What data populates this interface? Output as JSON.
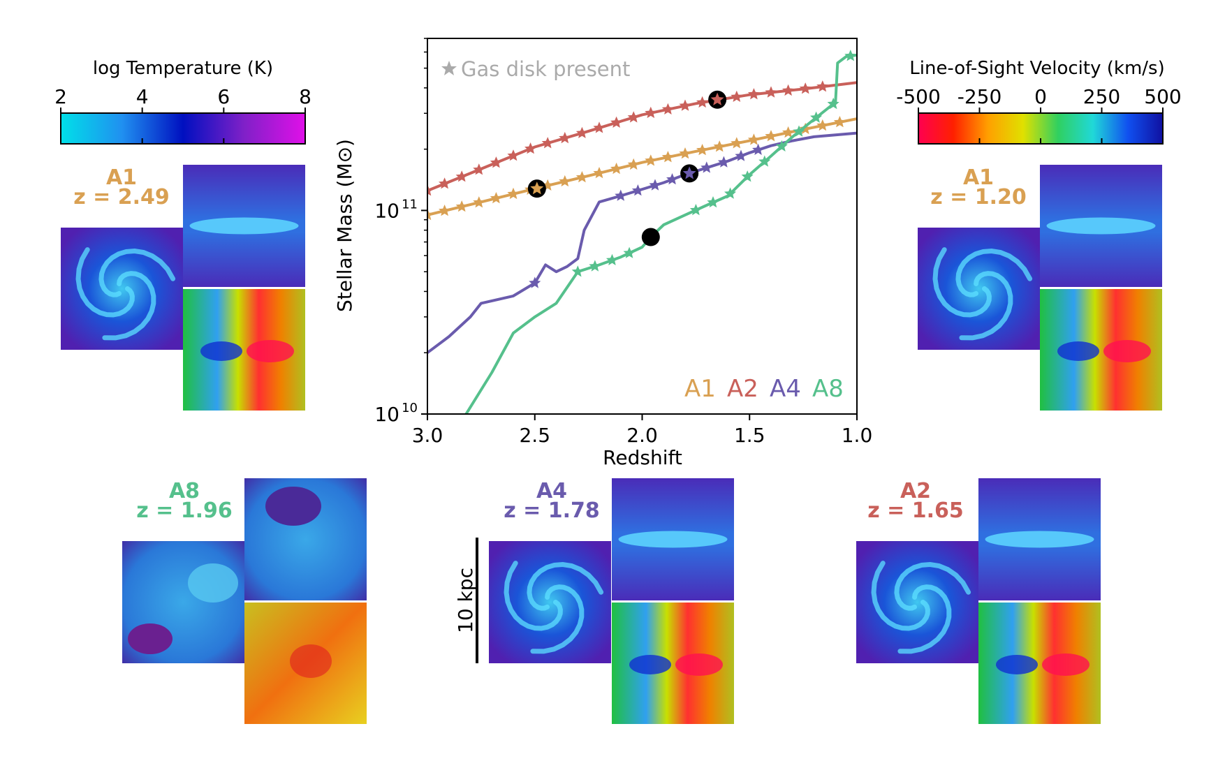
{
  "chart_data": {
    "type": "line",
    "title": "",
    "xlabel": "Redshift",
    "ylabel": "Stellar Mass (M⊙)",
    "xlim": [
      3.0,
      1.0
    ],
    "ylim": [
      10000000000.0,
      700000000000.0
    ],
    "yscale": "log",
    "xticks": [
      3.0,
      2.5,
      2.0,
      1.5,
      1.0
    ],
    "xtick_labels": [
      "3.0",
      "2.5",
      "2.0",
      "1.5",
      "1.0"
    ],
    "yticks": [
      {
        "value": 10000000000.0,
        "base": "10",
        "exp": "10"
      },
      {
        "value": 100000000000.0,
        "base": "10",
        "exp": "11"
      }
    ],
    "annotation": "Gas disk present",
    "legend_entries": [
      "A1",
      "A2",
      "A4",
      "A8"
    ],
    "legend_position": "bottom-right",
    "series": [
      {
        "name": "A1",
        "color": "#d9a052",
        "x": [
          3.0,
          2.75,
          2.5,
          2.25,
          2.0,
          1.75,
          1.5,
          1.25,
          1.0
        ],
        "y": [
          95000000000.0,
          110000000000.0,
          128000000000.0,
          148000000000.0,
          172000000000.0,
          195000000000.0,
          220000000000.0,
          250000000000.0,
          282000000000.0
        ],
        "stars_ranges": [
          [
            3.0,
            1.05
          ]
        ],
        "highlight": {
          "x": 2.49,
          "y": 128000000000.0
        }
      },
      {
        "name": "A2",
        "color": "#c9605a",
        "x": [
          3.0,
          2.75,
          2.5,
          2.25,
          2.0,
          1.75,
          1.5,
          1.25,
          1.0
        ],
        "y": [
          125000000000.0,
          160000000000.0,
          205000000000.0,
          245000000000.0,
          295000000000.0,
          335000000000.0,
          370000000000.0,
          395000000000.0,
          425000000000.0
        ],
        "stars_ranges": [
          [
            3.0,
            1.1
          ]
        ],
        "highlight": {
          "x": 1.65,
          "y": 350000000000.0
        }
      },
      {
        "name": "A4",
        "color": "#6a5bad",
        "x": [
          3.0,
          2.9,
          2.8,
          2.75,
          2.6,
          2.5,
          2.45,
          2.4,
          2.35,
          2.3,
          2.27,
          2.2,
          2.1,
          2.0,
          1.9,
          1.8,
          1.7,
          1.6,
          1.5,
          1.4,
          1.3,
          1.2,
          1.1,
          1.0
        ],
        "y": [
          20000000000.0,
          24000000000.0,
          30000000000.0,
          35000000000.0,
          38000000000.0,
          44000000000.0,
          54000000000.0,
          50000000000.0,
          53000000000.0,
          58000000000.0,
          80000000000.0,
          110000000000.0,
          118000000000.0,
          127000000000.0,
          137000000000.0,
          150000000000.0,
          162000000000.0,
          175000000000.0,
          192000000000.0,
          208000000000.0,
          220000000000.0,
          230000000000.0,
          235000000000.0,
          240000000000.0
        ],
        "stars_ranges": [
          [
            2.5,
            2.48
          ],
          [
            2.1,
            1.4
          ]
        ],
        "highlight": {
          "x": 1.78,
          "y": 152000000000.0
        }
      },
      {
        "name": "A8",
        "color": "#55c08c",
        "x": [
          2.82,
          2.7,
          2.6,
          2.5,
          2.4,
          2.3,
          2.2,
          2.1,
          2.0,
          1.96,
          1.9,
          1.8,
          1.7,
          1.6,
          1.5,
          1.4,
          1.3,
          1.2,
          1.1,
          1.09,
          1.05,
          1.0
        ],
        "y": [
          10000000000.0,
          16000000000.0,
          25000000000.0,
          30000000000.0,
          35000000000.0,
          50000000000.0,
          54000000000.0,
          59000000000.0,
          66000000000.0,
          74000000000.0,
          85000000000.0,
          95000000000.0,
          106000000000.0,
          118000000000.0,
          150000000000.0,
          185000000000.0,
          230000000000.0,
          280000000000.0,
          340000000000.0,
          530000000000.0,
          570000000000.0,
          580000000000.0
        ],
        "stars_ranges": [
          [
            2.3,
            2.05
          ],
          [
            1.75,
            1.0
          ]
        ],
        "highlight": {
          "x": 1.96,
          "y": 74000000000.0
        }
      }
    ]
  },
  "colorbars": {
    "temperature": {
      "label": "log Temperature (K)",
      "ticks": [
        "2",
        "4",
        "6",
        "8"
      ],
      "colors": [
        "#00e0e8",
        "#2090f0",
        "#0010c0",
        "#8020c8",
        "#e010e8"
      ]
    },
    "velocity": {
      "label": "Line-of-Sight Velocity (km/s)",
      "ticks": [
        "-500",
        "-250",
        "0",
        "250",
        "500"
      ],
      "colors": [
        "#ff0050",
        "#ff2000",
        "#ffa000",
        "#e0e000",
        "#30d060",
        "#20d8d8",
        "#1050f0",
        "#1010a0"
      ]
    }
  },
  "panels": [
    {
      "id": "a1-early",
      "name": "A1",
      "redshift": "z = 2.49",
      "color": "#d9a052"
    },
    {
      "id": "a1-late",
      "name": "A1",
      "redshift": "z = 1.20",
      "color": "#d9a052"
    },
    {
      "id": "a8",
      "name": "A8",
      "redshift": "z = 1.96",
      "color": "#55c08c"
    },
    {
      "id": "a4",
      "name": "A4",
      "redshift": "z = 1.78",
      "color": "#6a5bad"
    },
    {
      "id": "a2",
      "name": "A2",
      "redshift": "z = 1.65",
      "color": "#c9605a"
    }
  ],
  "scale_bar": {
    "label": "10 kpc"
  }
}
